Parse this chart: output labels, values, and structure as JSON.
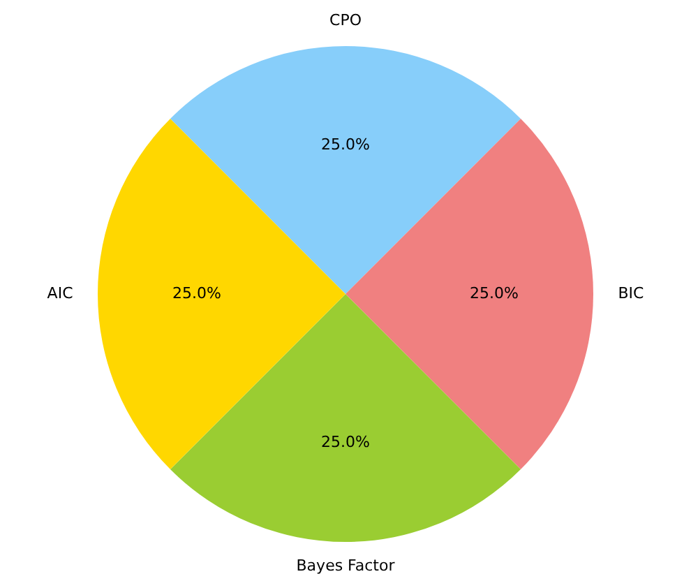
{
  "chart_data": {
    "type": "pie",
    "categories": [
      "CPO",
      "BIC",
      "Bayes Factor",
      "AIC"
    ],
    "values": [
      25,
      25,
      25,
      25
    ],
    "colors": [
      "#87cefa",
      "#f08080",
      "#9acd32",
      "#ffd700"
    ],
    "value_labels": [
      "25.0%",
      "25.0%",
      "25.0%",
      "25.0%"
    ],
    "legend": false
  }
}
